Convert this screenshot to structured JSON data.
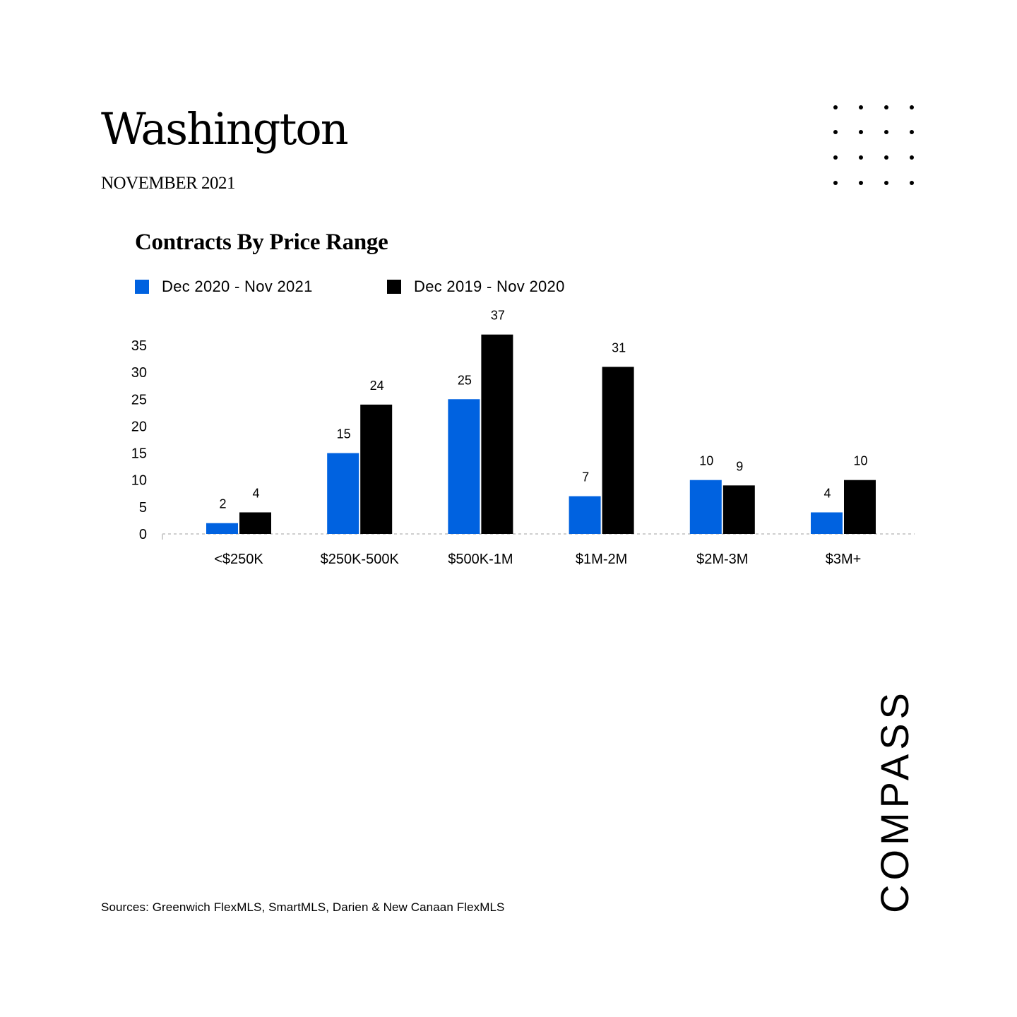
{
  "page": {
    "title": "Washington",
    "subtitle": "NOVEMBER 2021",
    "source": "Sources: Greenwich FlexMLS, SmartMLS, Darien & New Canaan FlexMLS",
    "logo": "COMPASS"
  },
  "colors": {
    "series1": "#0062E0",
    "series2": "#000000",
    "background": "#ffffff"
  },
  "chart_data": {
    "type": "bar",
    "title": "Contracts By Price Range",
    "categories": [
      "<$250K",
      "$250K-500K",
      "$500K-1M",
      "$1M-2M",
      "$2M-3M",
      "$3M+"
    ],
    "series": [
      {
        "name": "Dec 2020 - Nov 2021",
        "values": [
          2,
          15,
          25,
          7,
          10,
          4
        ]
      },
      {
        "name": "Dec 2019 - Nov 2020",
        "values": [
          4,
          24,
          37,
          31,
          9,
          10
        ]
      }
    ],
    "yticks": [
      0,
      5,
      10,
      15,
      20,
      25,
      30,
      35
    ],
    "ylim": [
      0,
      37
    ],
    "legend_position": "top-left",
    "grid": false,
    "data_labels": true
  }
}
